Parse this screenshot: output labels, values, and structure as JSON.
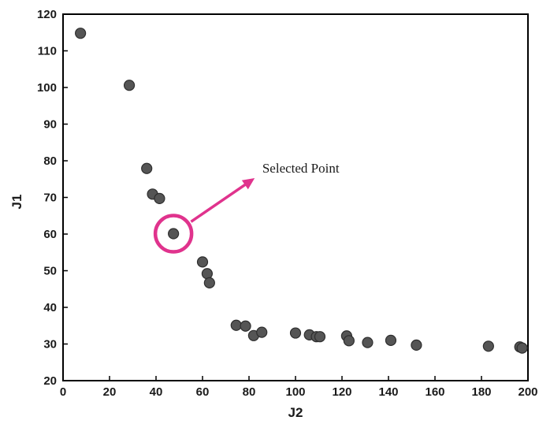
{
  "chart_data": {
    "type": "scatter",
    "xlabel": "J2",
    "ylabel": "J1",
    "xlim": [
      0,
      200
    ],
    "ylim": [
      20,
      120
    ],
    "xticks": [
      0,
      20,
      40,
      60,
      80,
      100,
      120,
      140,
      160,
      180,
      200
    ],
    "yticks": [
      20,
      30,
      40,
      50,
      60,
      70,
      80,
      90,
      100,
      110,
      120
    ],
    "grid": false,
    "legend": "none",
    "marker_color": "#555555",
    "points": [
      {
        "x": 7.5,
        "y": 114.8
      },
      {
        "x": 28.5,
        "y": 100.6
      },
      {
        "x": 36,
        "y": 77.9
      },
      {
        "x": 38.5,
        "y": 70.9
      },
      {
        "x": 41.5,
        "y": 69.7
      },
      {
        "x": 47.5,
        "y": 60.1
      },
      {
        "x": 60,
        "y": 52.4
      },
      {
        "x": 62,
        "y": 49.2
      },
      {
        "x": 63,
        "y": 46.7
      },
      {
        "x": 74.5,
        "y": 35.1
      },
      {
        "x": 78.5,
        "y": 34.9
      },
      {
        "x": 82,
        "y": 32.3
      },
      {
        "x": 85.5,
        "y": 33.2
      },
      {
        "x": 100,
        "y": 33
      },
      {
        "x": 106,
        "y": 32.5
      },
      {
        "x": 109,
        "y": 32
      },
      {
        "x": 110.5,
        "y": 32
      },
      {
        "x": 122,
        "y": 32.2
      },
      {
        "x": 123,
        "y": 30.9
      },
      {
        "x": 131,
        "y": 30.4
      },
      {
        "x": 141,
        "y": 31
      },
      {
        "x": 152,
        "y": 29.7
      },
      {
        "x": 183,
        "y": 29.4
      },
      {
        "x": 196.5,
        "y": 29.2
      },
      {
        "x": 197.5,
        "y": 28.9
      }
    ],
    "annotations": [
      {
        "text": "Selected Point",
        "target": {
          "x": 47.5,
          "y": 60.1
        },
        "text_anchor": {
          "x": 83,
          "y": 75.5
        },
        "color": "#e0338d"
      }
    ]
  }
}
